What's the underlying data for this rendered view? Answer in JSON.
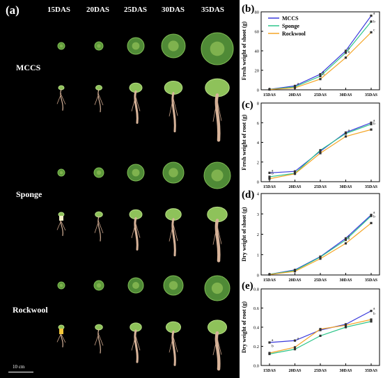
{
  "photo": {
    "panel_label": "(a)",
    "days": [
      "15DAS",
      "20DAS",
      "25DAS",
      "30DAS",
      "35DAS"
    ],
    "groups": [
      "MCCS",
      "Sponge",
      "Rockwool"
    ],
    "scale_label": "10 cm"
  },
  "colors": {
    "MCCS": "#3a3adc",
    "Sponge": "#2ec58a",
    "Rockwool": "#f4a526",
    "photo_bg": "#000000"
  },
  "chart_data": [
    {
      "panel": "(b)",
      "type": "line",
      "categories": [
        "15DAS",
        "20DAS",
        "25DAS",
        "30DAS",
        "35DAS"
      ],
      "ylabel": "Fresh weight of shoot (g)",
      "ylim": [
        0,
        80
      ],
      "yticks": [
        "0",
        "20",
        "40",
        "60",
        "80"
      ],
      "legend": "top-left",
      "series": [
        {
          "name": "MCCS",
          "values": [
            0.5,
            4,
            16,
            40,
            76
          ]
        },
        {
          "name": "Sponge",
          "values": [
            0.4,
            3,
            14,
            38,
            70
          ]
        },
        {
          "name": "Rockwool",
          "values": [
            0.3,
            2,
            11,
            33,
            59
          ]
        }
      ],
      "sig_letters": [
        {
          "x": "20DAS",
          "text": "a"
        },
        {
          "x": "25DAS",
          "text": "a"
        },
        {
          "x": "25DAS",
          "text": "b"
        },
        {
          "x": "30DAS",
          "text": "a"
        },
        {
          "x": "30DAS",
          "text": "b"
        },
        {
          "x": "35DAS",
          "text": "a"
        },
        {
          "x": "35DAS",
          "text": "b"
        },
        {
          "x": "35DAS",
          "text": "c"
        }
      ]
    },
    {
      "panel": "(c)",
      "type": "line",
      "categories": [
        "15DAS",
        "20DAS",
        "25DAS",
        "30DAS",
        "35DAS"
      ],
      "ylabel": "Fresh weight of root (g)",
      "ylim": [
        0,
        8
      ],
      "yticks": [
        "0",
        "2",
        "4",
        "6",
        "8"
      ],
      "series": [
        {
          "name": "MCCS",
          "values": [
            0.9,
            1.05,
            3.1,
            5.0,
            6.0
          ]
        },
        {
          "name": "Sponge",
          "values": [
            0.5,
            0.85,
            3.2,
            4.9,
            5.85
          ]
        },
        {
          "name": "Rockwool",
          "values": [
            0.3,
            0.8,
            2.9,
            4.6,
            5.3
          ]
        }
      ],
      "sig_letters": [
        {
          "x": "15DAS",
          "text": "a"
        },
        {
          "x": "15DAS",
          "text": "b"
        },
        {
          "x": "30DAS",
          "text": "a"
        },
        {
          "x": "35DAS",
          "text": "a"
        },
        {
          "x": "35DAS",
          "text": "b"
        }
      ]
    },
    {
      "panel": "(d)",
      "type": "line",
      "categories": [
        "15DAS",
        "20DAS",
        "25DAS",
        "30DAS",
        "35DAS"
      ],
      "ylabel": "Dry weight of shoot (g)",
      "ylim": [
        0,
        4
      ],
      "yticks": [
        "0",
        "1",
        "2",
        "3",
        "4"
      ],
      "series": [
        {
          "name": "MCCS",
          "values": [
            0.03,
            0.25,
            0.9,
            1.8,
            2.95
          ]
        },
        {
          "name": "Sponge",
          "values": [
            0.03,
            0.22,
            0.88,
            1.72,
            2.9
          ]
        },
        {
          "name": "Rockwool",
          "values": [
            0.02,
            0.18,
            0.8,
            1.55,
            2.55
          ]
        }
      ],
      "sig_letters": [
        {
          "x": "30DAS",
          "text": "a"
        },
        {
          "x": "30DAS",
          "text": "b"
        },
        {
          "x": "35DAS",
          "text": "a"
        },
        {
          "x": "35DAS",
          "text": "b"
        }
      ]
    },
    {
      "panel": "(e)",
      "type": "line",
      "categories": [
        "15DAS",
        "20DAS",
        "25DAS",
        "30DAS",
        "35DAS"
      ],
      "ylabel": "Dry weight of root (g)",
      "ylim": [
        0.0,
        0.8
      ],
      "yticks": [
        "0.0",
        "0.2",
        "0.4",
        "0.6",
        "0.8"
      ],
      "series": [
        {
          "name": "MCCS",
          "values": [
            0.24,
            0.26,
            0.37,
            0.43,
            0.57
          ]
        },
        {
          "name": "Sponge",
          "values": [
            0.12,
            0.17,
            0.31,
            0.4,
            0.46
          ]
        },
        {
          "name": "Rockwool",
          "values": [
            0.13,
            0.19,
            0.38,
            0.42,
            0.48
          ]
        }
      ],
      "sig_letters": [
        {
          "x": "15DAS",
          "text": "a"
        },
        {
          "x": "15DAS",
          "text": "b"
        },
        {
          "x": "20DAS",
          "text": "a"
        },
        {
          "x": "35DAS",
          "text": "a"
        },
        {
          "x": "35DAS",
          "text": "b"
        }
      ]
    }
  ]
}
